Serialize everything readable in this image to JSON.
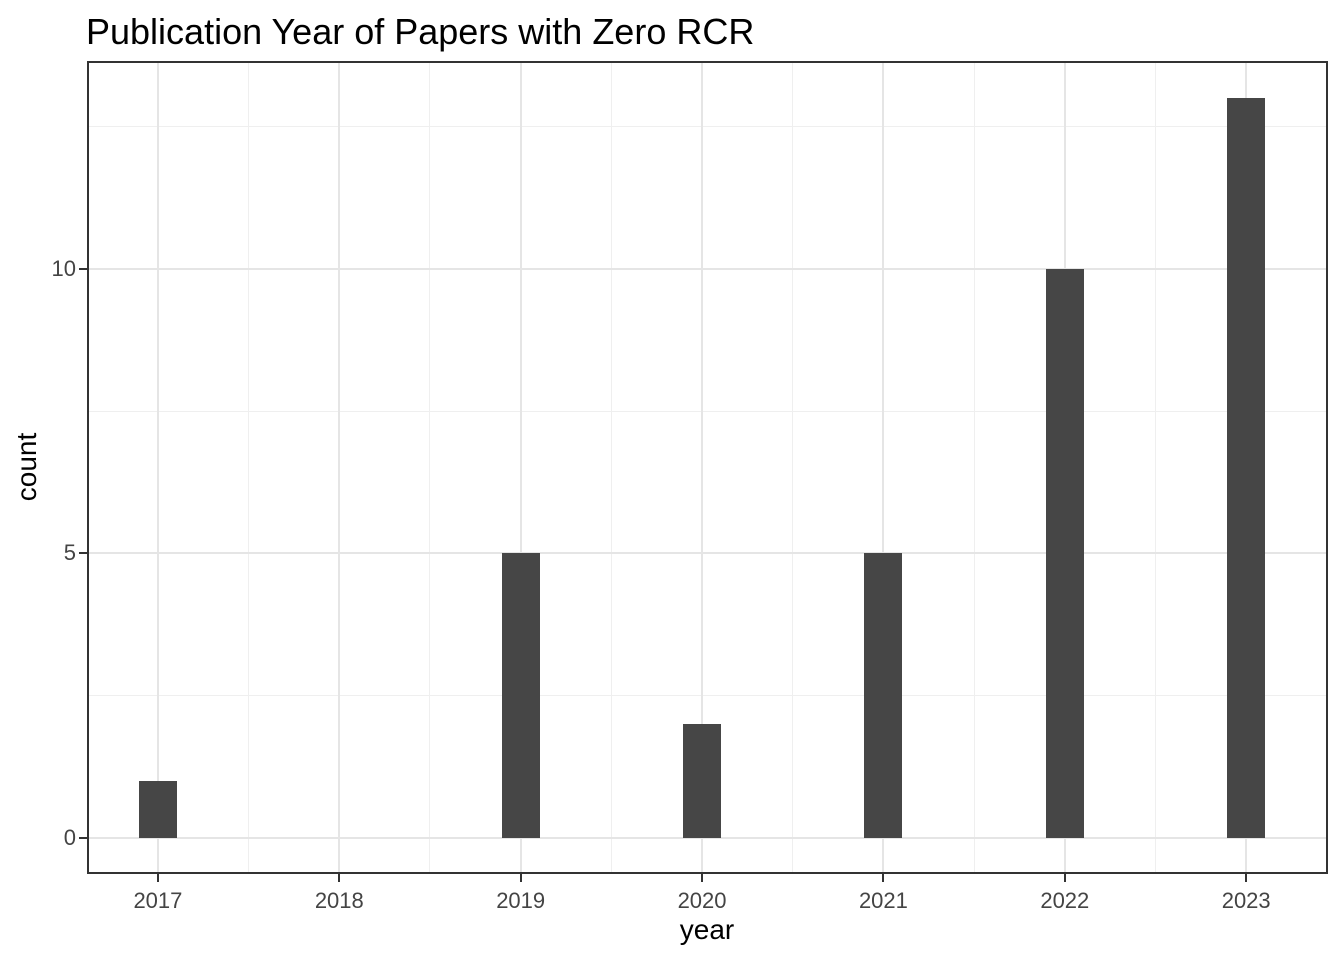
{
  "chart_data": {
    "type": "bar",
    "title": "Publication Year of Papers with Zero RCR",
    "xlabel": "year",
    "ylabel": "count",
    "categories": [
      "2017",
      "2018",
      "2019",
      "2020",
      "2021",
      "2022",
      "2023"
    ],
    "values": [
      1,
      0,
      5,
      2,
      5,
      10,
      13
    ],
    "x_tick_labels": [
      "2017",
      "2018",
      "2019",
      "2020",
      "2021",
      "2022",
      "2023"
    ],
    "x_tick_positions": [
      2017,
      2018,
      2019,
      2020,
      2021,
      2022,
      2023
    ],
    "x_minor_positions": [
      2017.5,
      2018.5,
      2019.5,
      2020.5,
      2021.5,
      2022.5
    ],
    "y_tick_labels": [
      "0",
      "5",
      "10"
    ],
    "y_tick_positions": [
      0,
      5,
      10
    ],
    "y_minor_positions": [
      2.5,
      7.5,
      12.5
    ],
    "xlim": [
      2016.62,
      2023.44
    ],
    "ylim": [
      -0.6,
      13.62
    ],
    "bar_width": 0.21,
    "grid": "major+minor",
    "legend": "none",
    "colors": {
      "bar": "#464646",
      "grid_major": "#e5e5e5",
      "grid_minor": "#efefef",
      "panel_border": "#333333",
      "tick_mark": "#333333",
      "tick_label": "#444444",
      "text": "#000000",
      "background": "#ffffff"
    }
  }
}
